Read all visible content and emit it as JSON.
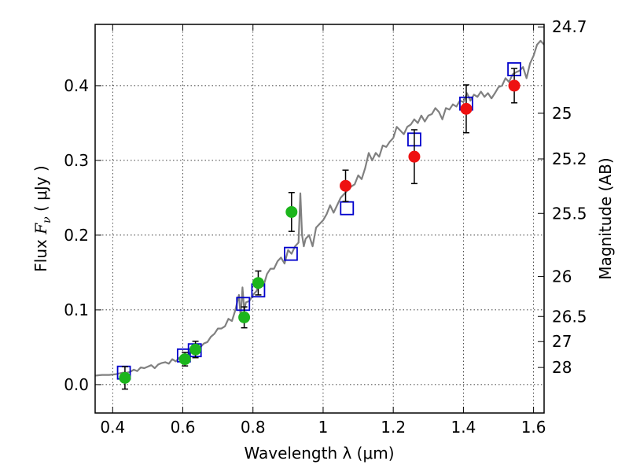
{
  "chart_data": {
    "type": "scatter",
    "xlabel": "Wavelength  λ (μm)",
    "ylabel_prefix": "Flux  ",
    "ylabel_symbol": "F",
    "ylabel_sub": "ν",
    "ylabel_suffix": "  ( μJy )",
    "y2label": "Magnitude (AB)",
    "xlim": [
      0.35,
      1.63
    ],
    "ylim": [
      -0.038,
      0.482
    ],
    "grid": true,
    "x_ticks": [
      {
        "value": 0.4,
        "label": "0.4"
      },
      {
        "value": 0.6,
        "label": "0.6"
      },
      {
        "value": 0.8,
        "label": "0.8"
      },
      {
        "value": 1.0,
        "label": "1"
      },
      {
        "value": 1.2,
        "label": "1.2"
      },
      {
        "value": 1.4,
        "label": "1.4"
      },
      {
        "value": 1.6,
        "label": "1.6"
      }
    ],
    "y_ticks": [
      {
        "value": 0.0,
        "label": "0.0"
      },
      {
        "value": 0.1,
        "label": "0.1"
      },
      {
        "value": 0.2,
        "label": "0.2"
      },
      {
        "value": 0.3,
        "label": "0.3"
      },
      {
        "value": 0.4,
        "label": "0.4"
      }
    ],
    "y2_ticks": [
      {
        "value": 24.7,
        "label": "24.7"
      },
      {
        "value": 25,
        "label": "25"
      },
      {
        "value": 25.2,
        "label": "25.2"
      },
      {
        "value": 25.5,
        "label": "25.5"
      },
      {
        "value": 26,
        "label": "26"
      },
      {
        "value": 26.5,
        "label": "26.5"
      },
      {
        "value": 27,
        "label": "27"
      },
      {
        "value": 28,
        "label": "28"
      }
    ],
    "colors": {
      "model": "#808080",
      "synthetic": "#0000cc",
      "optical": "#1cb51c",
      "nir": "#ee1111",
      "error": "#000000"
    },
    "series": [
      {
        "kind": "line",
        "color_key": "model",
        "x": [
          0.35,
          0.37,
          0.39,
          0.41,
          0.42,
          0.43,
          0.44,
          0.45,
          0.46,
          0.47,
          0.48,
          0.49,
          0.5,
          0.51,
          0.52,
          0.53,
          0.54,
          0.55,
          0.56,
          0.57,
          0.58,
          0.59,
          0.6,
          0.61,
          0.62,
          0.63,
          0.64,
          0.65,
          0.66,
          0.67,
          0.68,
          0.69,
          0.7,
          0.71,
          0.72,
          0.73,
          0.74,
          0.75,
          0.76,
          0.765,
          0.77,
          0.775,
          0.78,
          0.79,
          0.8,
          0.81,
          0.82,
          0.83,
          0.84,
          0.85,
          0.86,
          0.87,
          0.88,
          0.89,
          0.9,
          0.91,
          0.92,
          0.93,
          0.935,
          0.94,
          0.945,
          0.95,
          0.96,
          0.97,
          0.98,
          0.99,
          1.0,
          1.01,
          1.02,
          1.03,
          1.04,
          1.05,
          1.06,
          1.07,
          1.08,
          1.09,
          1.1,
          1.11,
          1.12,
          1.13,
          1.14,
          1.15,
          1.16,
          1.17,
          1.18,
          1.19,
          1.2,
          1.21,
          1.22,
          1.23,
          1.24,
          1.25,
          1.26,
          1.27,
          1.28,
          1.29,
          1.3,
          1.31,
          1.32,
          1.33,
          1.34,
          1.35,
          1.36,
          1.37,
          1.38,
          1.39,
          1.4,
          1.41,
          1.42,
          1.43,
          1.44,
          1.45,
          1.46,
          1.47,
          1.48,
          1.49,
          1.5,
          1.51,
          1.52,
          1.53,
          1.54,
          1.55,
          1.56,
          1.57,
          1.58,
          1.59,
          1.6,
          1.61,
          1.62,
          1.63
        ],
        "y": [
          0.012,
          0.013,
          0.013,
          0.014,
          0.015,
          0.016,
          0.016,
          0.017,
          0.02,
          0.018,
          0.023,
          0.022,
          0.024,
          0.026,
          0.022,
          0.027,
          0.029,
          0.03,
          0.028,
          0.034,
          0.031,
          0.036,
          0.036,
          0.039,
          0.042,
          0.044,
          0.046,
          0.05,
          0.055,
          0.057,
          0.064,
          0.068,
          0.075,
          0.075,
          0.078,
          0.088,
          0.085,
          0.1,
          0.12,
          0.09,
          0.13,
          0.1,
          0.11,
          0.112,
          0.12,
          0.125,
          0.14,
          0.132,
          0.148,
          0.155,
          0.155,
          0.165,
          0.17,
          0.162,
          0.18,
          0.175,
          0.185,
          0.19,
          0.256,
          0.2,
          0.185,
          0.195,
          0.2,
          0.185,
          0.21,
          0.215,
          0.22,
          0.228,
          0.24,
          0.23,
          0.24,
          0.25,
          0.255,
          0.26,
          0.265,
          0.268,
          0.28,
          0.275,
          0.29,
          0.31,
          0.3,
          0.31,
          0.305,
          0.32,
          0.318,
          0.325,
          0.33,
          0.345,
          0.34,
          0.335,
          0.345,
          0.348,
          0.355,
          0.35,
          0.36,
          0.352,
          0.36,
          0.362,
          0.37,
          0.365,
          0.355,
          0.37,
          0.368,
          0.375,
          0.372,
          0.38,
          0.378,
          0.39,
          0.38,
          0.388,
          0.385,
          0.392,
          0.385,
          0.39,
          0.383,
          0.39,
          0.398,
          0.4,
          0.41,
          0.405,
          0.415,
          0.418,
          0.42,
          0.425,
          0.41,
          0.43,
          0.44,
          0.455,
          0.46,
          0.455
        ]
      },
      {
        "kind": "points",
        "marker": "square",
        "color_key": "synthetic",
        "points": [
          {
            "x": 0.432,
            "y": 0.016
          },
          {
            "x": 0.603,
            "y": 0.039
          },
          {
            "x": 0.634,
            "y": 0.046
          },
          {
            "x": 0.772,
            "y": 0.108
          },
          {
            "x": 0.815,
            "y": 0.126
          },
          {
            "x": 0.908,
            "y": 0.175
          },
          {
            "x": 1.068,
            "y": 0.236
          },
          {
            "x": 1.26,
            "y": 0.328
          },
          {
            "x": 1.408,
            "y": 0.376
          },
          {
            "x": 1.545,
            "y": 0.422
          }
        ]
      },
      {
        "kind": "points",
        "marker": "circle",
        "color_key": "optical",
        "points": [
          {
            "x": 0.435,
            "y": 0.009,
            "err": 0.015
          },
          {
            "x": 0.606,
            "y": 0.034,
            "err": 0.009
          },
          {
            "x": 0.636,
            "y": 0.047,
            "err": 0.011
          },
          {
            "x": 0.775,
            "y": 0.09,
            "err": 0.014
          },
          {
            "x": 0.815,
            "y": 0.136,
            "err": 0.016
          },
          {
            "x": 0.91,
            "y": 0.231,
            "err": 0.026
          }
        ]
      },
      {
        "kind": "points",
        "marker": "circle",
        "color_key": "nir",
        "points": [
          {
            "x": 1.064,
            "y": 0.266,
            "err": 0.021
          },
          {
            "x": 1.26,
            "y": 0.305,
            "err": 0.036
          },
          {
            "x": 1.408,
            "y": 0.369,
            "err": 0.032
          },
          {
            "x": 1.545,
            "y": 0.4,
            "err": 0.023
          }
        ]
      }
    ]
  }
}
